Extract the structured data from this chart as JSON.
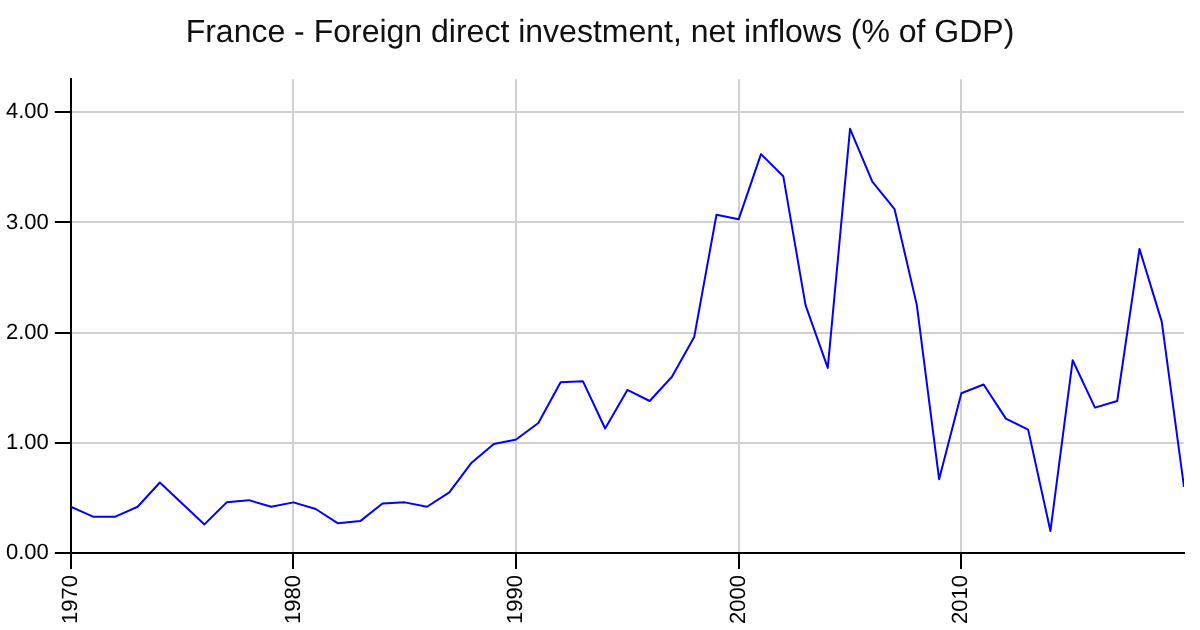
{
  "chart_data": {
    "type": "line",
    "title": "France - Foreign direct investment, net inflows (% of GDP)",
    "x": [
      1970,
      1971,
      1972,
      1973,
      1974,
      1975,
      1976,
      1977,
      1978,
      1979,
      1980,
      1981,
      1982,
      1983,
      1984,
      1985,
      1986,
      1987,
      1988,
      1989,
      1990,
      1991,
      1992,
      1993,
      1994,
      1995,
      1996,
      1997,
      1998,
      1999,
      2000,
      2001,
      2002,
      2003,
      2004,
      2005,
      2006,
      2007,
      2008,
      2009,
      2010,
      2011,
      2012,
      2013,
      2014,
      2015,
      2016,
      2017,
      2018,
      2019,
      2020
    ],
    "series": [
      {
        "color": "#0000ff",
        "values": [
          0.42,
          0.33,
          0.33,
          0.42,
          0.64,
          0.45,
          0.26,
          0.46,
          0.48,
          0.42,
          0.46,
          0.4,
          0.27,
          0.29,
          0.45,
          0.46,
          0.42,
          0.55,
          0.82,
          0.99,
          1.03,
          1.18,
          1.55,
          1.56,
          1.13,
          1.48,
          1.38,
          1.6,
          1.96,
          3.07,
          3.03,
          3.62,
          3.42,
          2.25,
          1.68,
          3.85,
          3.37,
          3.12,
          2.25,
          0.67,
          1.45,
          1.53,
          1.22,
          1.12,
          0.2,
          1.75,
          1.32,
          1.38,
          2.76,
          2.1,
          0.6
        ]
      }
    ],
    "xlim": [
      1970,
      2020
    ],
    "xticks": [
      1970,
      1980,
      1990,
      2000,
      2010
    ],
    "ylim": [
      0,
      4.3
    ],
    "yticks": [
      {
        "value": 0,
        "label": "0.00"
      },
      {
        "value": 1,
        "label": "1.00"
      },
      {
        "value": 2,
        "label": "2.00"
      },
      {
        "value": 3,
        "label": "3.00"
      },
      {
        "value": 4,
        "label": "4.00"
      }
    ],
    "grid": true,
    "legend": false,
    "marker": "none",
    "line_style": "solid"
  }
}
